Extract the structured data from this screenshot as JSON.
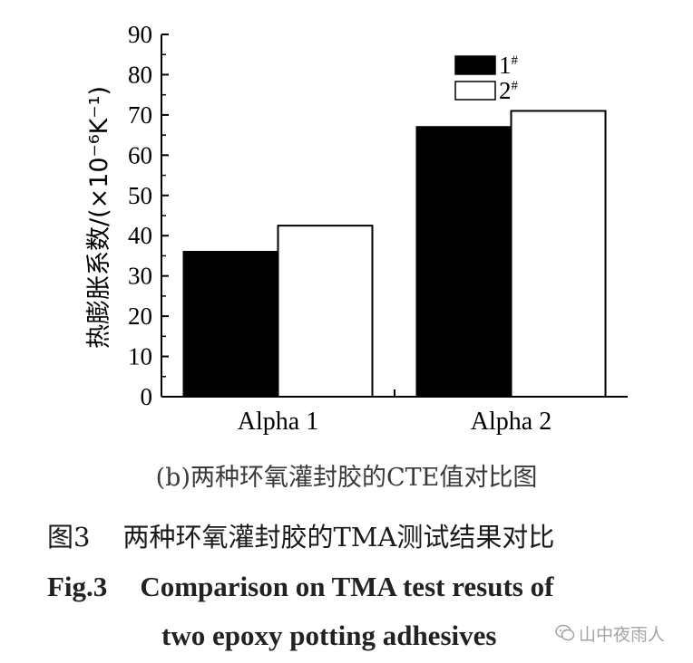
{
  "chart_data": {
    "type": "bar",
    "categories": [
      "Alpha 1",
      "Alpha 2"
    ],
    "series": [
      {
        "name": "1",
        "sup": "#",
        "values": [
          36,
          67
        ],
        "color": "#000000"
      },
      {
        "name": "2",
        "sup": "#",
        "values": [
          42.5,
          71
        ],
        "color": "#ffffff"
      }
    ],
    "ylabel": "热膨胀系数/(×10⁻⁶K⁻¹)",
    "ylim": [
      0,
      90
    ],
    "yticks": [
      0,
      10,
      20,
      30,
      40,
      50,
      60,
      70,
      80,
      90
    ],
    "legend_position": "top-right",
    "grid": false
  },
  "captions": {
    "sub": "(b)两种环氧灌封胶的CTE值对比图",
    "cn_num": "图3",
    "cn_text": "两种环氧灌封胶的TMA测试结果对比",
    "en_num": "Fig.3",
    "en_line1": "Comparison on TMA test resuts of",
    "en_line2": "two epoxy potting adhesives"
  },
  "watermark": {
    "text": "山中夜雨人",
    "icon": "wechat-icon"
  }
}
